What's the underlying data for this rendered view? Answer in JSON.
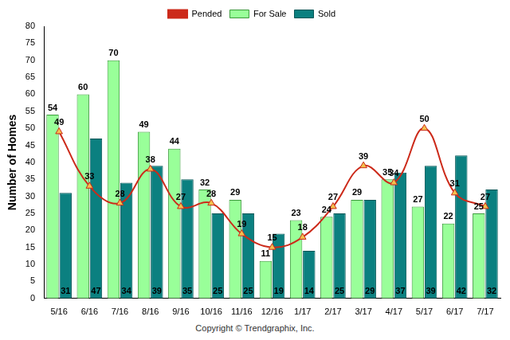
{
  "chart_data": {
    "type": "bar",
    "y_label": "Number of Homes",
    "annotations": [
      "Copyright © Trendgraphix, Inc."
    ],
    "categories": [
      "5/16",
      "6/16",
      "7/16",
      "8/16",
      "9/16",
      "10/16",
      "11/16",
      "12/16",
      "1/17",
      "2/17",
      "3/17",
      "4/17",
      "5/17",
      "6/17",
      "7/17"
    ],
    "series": [
      {
        "name": "For Sale",
        "type": "bar",
        "color": "#99ff99",
        "values": [
          54,
          60,
          70,
          49,
          44,
          32,
          29,
          11,
          23,
          24,
          29,
          35,
          27,
          22,
          25
        ]
      },
      {
        "name": "Sold",
        "type": "bar",
        "color": "#0b8080",
        "values": [
          31,
          47,
          34,
          39,
          35,
          25,
          25,
          19,
          14,
          25,
          29,
          37,
          39,
          42,
          32
        ]
      },
      {
        "name": "Pended",
        "type": "line",
        "color": "#cc2a1a",
        "marker": "triangle",
        "line_style": "solid",
        "values": [
          49,
          33,
          28,
          38,
          27,
          28,
          19,
          15,
          18,
          27,
          39,
          34,
          50,
          31,
          27
        ]
      }
    ],
    "ylim": [
      0,
      80
    ],
    "yticks": [
      0,
      5,
      10,
      15,
      20,
      25,
      30,
      35,
      40,
      45,
      50,
      55,
      60,
      65,
      70,
      75,
      80
    ],
    "grid": false,
    "legend": "top",
    "data_labels": true
  }
}
